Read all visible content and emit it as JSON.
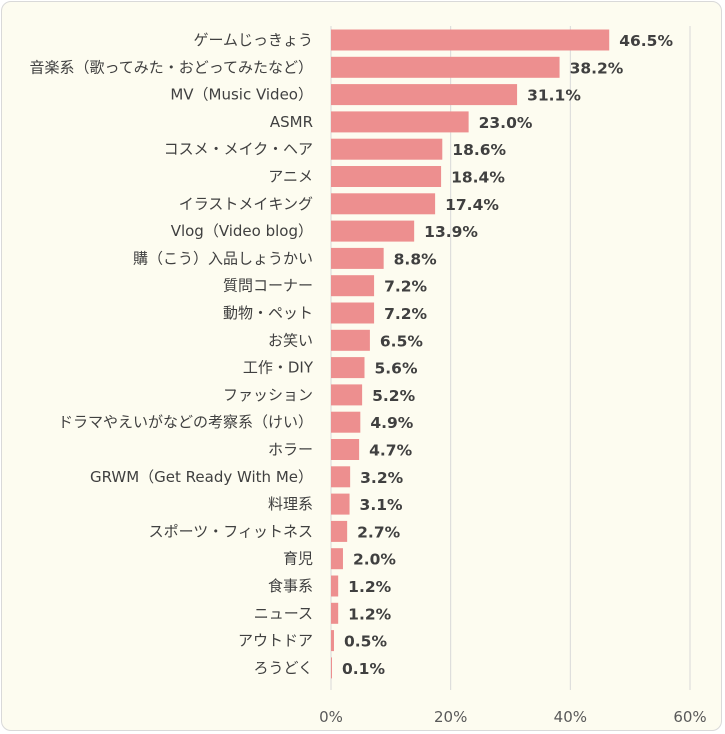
{
  "chart_data": {
    "type": "bar",
    "orientation": "horizontal",
    "categories": [
      "ゲームじっきょう",
      "音楽系（歌ってみた・おどってみたなど）",
      "MV（Music Video）",
      "ASMR",
      "コスメ・メイク・ヘア",
      "アニメ",
      "イラストメイキング",
      "Vlog（Video blog）",
      "購（こう）入品しょうかい",
      "質問コーナー",
      "動物・ペット",
      "お笑い",
      "工作・DIY",
      "ファッション",
      "ドラマやえいがなどの考察系（けい）",
      "ホラー",
      "GRWM（Get Ready With Me）",
      "料理系",
      "スポーツ・フィットネス",
      "育児",
      "食事系",
      "ニュース",
      "アウトドア",
      "ろうどく"
    ],
    "values": [
      46.5,
      38.2,
      31.1,
      23.0,
      18.6,
      18.4,
      17.4,
      13.9,
      8.8,
      7.2,
      7.2,
      6.5,
      5.6,
      5.2,
      4.9,
      4.7,
      3.2,
      3.1,
      2.7,
      2.0,
      1.2,
      1.2,
      0.5,
      0.1
    ],
    "value_labels": [
      "46.5%",
      "38.2%",
      "31.1%",
      "23.0%",
      "18.6%",
      "18.4%",
      "17.4%",
      "13.9%",
      "8.8%",
      "7.2%",
      "7.2%",
      "6.5%",
      "5.6%",
      "5.2%",
      "4.9%",
      "4.7%",
      "3.2%",
      "3.1%",
      "2.7%",
      "2.0%",
      "1.2%",
      "1.2%",
      "0.5%",
      "0.1%"
    ],
    "xlim": [
      0,
      60
    ],
    "x_ticks": [
      "0%",
      "20%",
      "40%",
      "60%"
    ],
    "grid": true,
    "title": "",
    "xlabel": "",
    "ylabel": "",
    "colors": {
      "bar": "#ed8f8f",
      "grid": "#d9d9d9",
      "panel_bg": "#fdfcf0",
      "text": "#404040"
    }
  }
}
